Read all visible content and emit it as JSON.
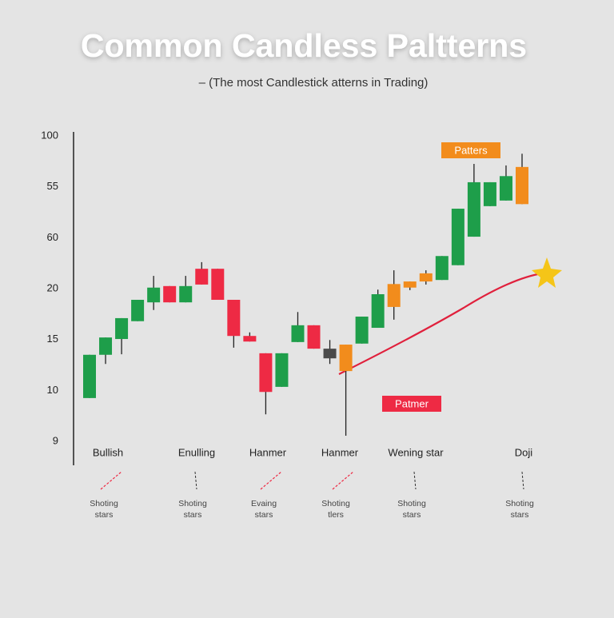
{
  "chart_data": {
    "type": "candlestick",
    "title": "Common Candless Paltterns",
    "subtitle": "–  (The most Candlestick atterns in Trading)",
    "y_labels": [
      "9",
      "10",
      "15",
      "20",
      "60",
      "55",
      "100"
    ],
    "ylim": [
      0,
      6
    ],
    "open": [
      0.85,
      1.7,
      2.01,
      2.36,
      2.73,
      3.05,
      2.73,
      3.39,
      3.39,
      2.78,
      2.07,
      1.73,
      1.07,
      1.95,
      2.28,
      1.82,
      1.9,
      1.92,
      2.23,
      2.64,
      3.02,
      3.14,
      3.17,
      3.46,
      4.02,
      4.62,
      4.73,
      4.66
    ],
    "close": [
      1.7,
      2.04,
      2.42,
      2.78,
      3.02,
      2.73,
      3.05,
      3.08,
      2.78,
      2.07,
      1.96,
      0.97,
      1.73,
      2.28,
      1.82,
      1.63,
      1.38,
      2.45,
      2.89,
      3.09,
      3.14,
      3.3,
      3.64,
      4.57,
      5.09,
      5.09,
      5.21,
      5.39
    ],
    "high": [
      1.7,
      2.04,
      2.42,
      2.78,
      3.25,
      3.05,
      3.25,
      3.52,
      3.39,
      2.78,
      2.14,
      1.73,
      1.73,
      2.54,
      2.28,
      1.99,
      1.9,
      2.45,
      2.98,
      3.36,
      3.14,
      3.36,
      3.64,
      4.57,
      5.45,
      5.09,
      5.42,
      5.65
    ],
    "low": [
      0.85,
      1.52,
      1.71,
      2.36,
      2.58,
      2.73,
      2.73,
      3.08,
      2.78,
      1.84,
      1.96,
      0.53,
      1.07,
      1.95,
      1.82,
      1.52,
      0.11,
      1.92,
      2.23,
      2.39,
      2.97,
      3.08,
      3.17,
      3.46,
      4.02,
      4.62,
      4.73,
      4.66
    ],
    "colors": [
      "#1e9e4a",
      "#1e9e4a",
      "#1e9e4a",
      "#1e9e4a",
      "#1e9e4a",
      "#ee2a44",
      "#1e9e4a",
      "#ee2a44",
      "#ee2a44",
      "#ee2a44",
      "#ee2a44",
      "#ee2a44",
      "#1e9e4a",
      "#1e9e4a",
      "#ee2a44",
      "#4a4a4a",
      "#f28c1c",
      "#1e9e4a",
      "#1e9e4a",
      "#f28c1c",
      "#f28c1c",
      "#f28c1c",
      "#1e9e4a",
      "#1e9e4a",
      "#1e9e4a",
      "#1e9e4a",
      "#1e9e4a",
      "#f28c1c"
    ],
    "annotations": [
      {
        "text": "Patters",
        "color": "#f28c1c"
      },
      {
        "text": "Patmer",
        "color": "#ee2a44"
      }
    ],
    "patterns": [
      {
        "name": "Bullish",
        "note": [
          "Shoting",
          "stars"
        ],
        "arrow_color": "#ee2a44"
      },
      {
        "name": "Enulling",
        "note": [
          "Shoting",
          "stars"
        ],
        "arrow_color": "#333333"
      },
      {
        "name": "Hanmer",
        "note": [
          "Evaing",
          "stars"
        ],
        "arrow_color": "#ee2a44"
      },
      {
        "name": "Hanmer",
        "note": [
          "Shoting",
          "tlers"
        ],
        "arrow_color": "#ee2a44"
      },
      {
        "name": "Wening star",
        "note": [
          "Shoting",
          "stars"
        ],
        "arrow_color": "#333333"
      },
      {
        "name": "Doji",
        "note": [
          "Shoting",
          "stars"
        ],
        "arrow_color": "#333333"
      }
    ]
  }
}
